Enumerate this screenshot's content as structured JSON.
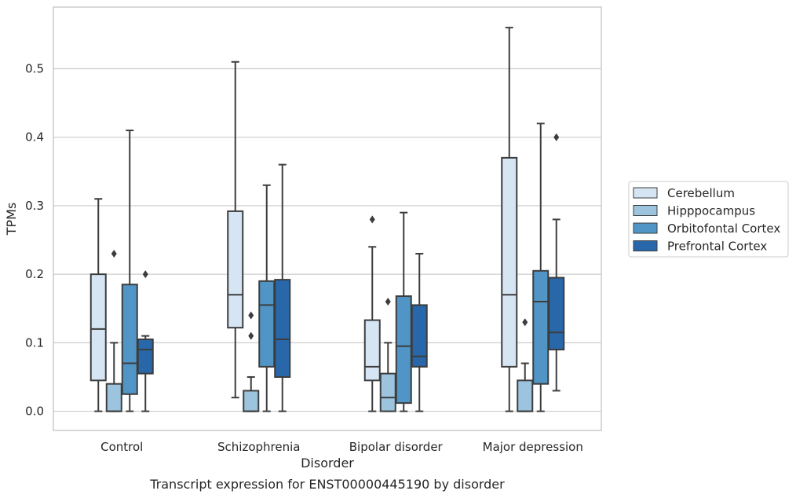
{
  "chart_data": {
    "type": "box",
    "title": "",
    "caption": "Transcript expression for ENST00000445190 by disorder",
    "xlabel": "Disorder",
    "ylabel": "TPMs",
    "ylim": [
      -0.028,
      0.59
    ],
    "yticks": [
      0.0,
      0.1,
      0.2,
      0.3,
      0.4,
      0.5
    ],
    "ytick_labels": [
      "0.0",
      "0.1",
      "0.2",
      "0.3",
      "0.4",
      "0.5"
    ],
    "grid": true,
    "legend_position": "right",
    "categories": [
      "Control",
      "Schizophrenia",
      "Bipolar disorder",
      "Major depression"
    ],
    "series": [
      {
        "name": "Cerebellum",
        "color": "#d6e5f4",
        "boxes": [
          {
            "whislo": 0.0,
            "q1": 0.045,
            "med": 0.12,
            "q3": 0.2,
            "whishi": 0.31,
            "fliers": []
          },
          {
            "whislo": 0.02,
            "q1": 0.122,
            "med": 0.17,
            "q3": 0.292,
            "whishi": 0.51,
            "fliers": []
          },
          {
            "whislo": 0.0,
            "q1": 0.045,
            "med": 0.065,
            "q3": 0.133,
            "whishi": 0.24,
            "fliers": [
              0.28
            ]
          },
          {
            "whislo": 0.0,
            "q1": 0.065,
            "med": 0.17,
            "q3": 0.37,
            "whishi": 0.56,
            "fliers": []
          }
        ]
      },
      {
        "name": "Hipppocampus",
        "color": "#9dc4de",
        "boxes": [
          {
            "whislo": 0.0,
            "q1": 0.0,
            "med": 0.0,
            "q3": 0.04,
            "whishi": 0.1,
            "fliers": [
              0.23
            ]
          },
          {
            "whislo": 0.0,
            "q1": 0.0,
            "med": 0.0,
            "q3": 0.03,
            "whishi": 0.05,
            "fliers": [
              0.14,
              0.11
            ]
          },
          {
            "whislo": 0.0,
            "q1": 0.0,
            "med": 0.02,
            "q3": 0.055,
            "whishi": 0.1,
            "fliers": [
              0.16
            ]
          },
          {
            "whislo": 0.0,
            "q1": 0.0,
            "med": 0.0,
            "q3": 0.045,
            "whishi": 0.07,
            "fliers": [
              0.13
            ]
          }
        ]
      },
      {
        "name": "Orbitofontal Cortex",
        "color": "#5095c5",
        "boxes": [
          {
            "whislo": 0.0,
            "q1": 0.025,
            "med": 0.07,
            "q3": 0.185,
            "whishi": 0.41,
            "fliers": []
          },
          {
            "whislo": 0.0,
            "q1": 0.065,
            "med": 0.155,
            "q3": 0.19,
            "whishi": 0.33,
            "fliers": []
          },
          {
            "whislo": 0.0,
            "q1": 0.012,
            "med": 0.095,
            "q3": 0.168,
            "whishi": 0.29,
            "fliers": []
          },
          {
            "whislo": 0.0,
            "q1": 0.04,
            "med": 0.16,
            "q3": 0.205,
            "whishi": 0.42,
            "fliers": []
          }
        ]
      },
      {
        "name": "Prefrontal Cortex",
        "color": "#2867a9",
        "boxes": [
          {
            "whislo": 0.0,
            "q1": 0.055,
            "med": 0.09,
            "q3": 0.105,
            "whishi": 0.11,
            "fliers": [
              0.2
            ]
          },
          {
            "whislo": 0.0,
            "q1": 0.05,
            "med": 0.105,
            "q3": 0.192,
            "whishi": 0.36,
            "fliers": []
          },
          {
            "whislo": 0.0,
            "q1": 0.065,
            "med": 0.08,
            "q3": 0.155,
            "whishi": 0.23,
            "fliers": []
          },
          {
            "whislo": 0.03,
            "q1": 0.09,
            "med": 0.115,
            "q3": 0.195,
            "whishi": 0.28,
            "fliers": [
              0.4
            ]
          }
        ]
      }
    ]
  }
}
